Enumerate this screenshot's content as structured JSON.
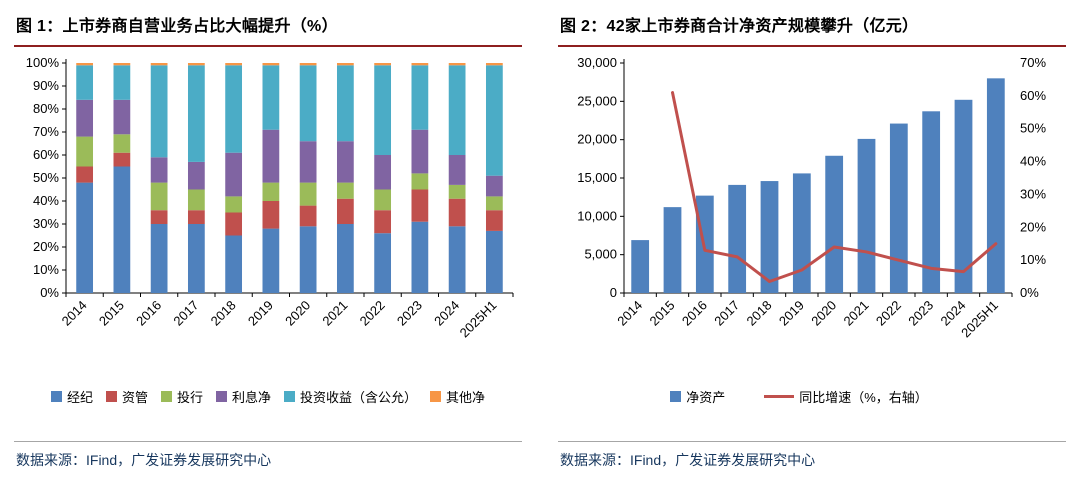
{
  "panels": [
    {
      "title": "图 1：上市券商自营业务占比大幅提升（%）",
      "source": "数据来源：IFind，广发证券发展研究中心"
    },
    {
      "title": "图 2：42家上市券商合计净资产规模攀升（亿元）",
      "source": "数据来源：IFind，广发证券发展研究中心"
    }
  ],
  "colors": {
    "title_rule": "#8E1F1F",
    "source_text": "#17375E",
    "divider": "#A6A6A6",
    "axis": "#000000"
  },
  "chart_data": [
    {
      "type": "bar",
      "stacked": true,
      "title": "上市券商自营业务占比大幅提升（%）",
      "categories": [
        "2014",
        "2015",
        "2016",
        "2017",
        "2018",
        "2019",
        "2020",
        "2021",
        "2022",
        "2023",
        "2024",
        "2025H1"
      ],
      "series": [
        {
          "name": "经纪",
          "color": "#4F81BD",
          "values": [
            48,
            55,
            30,
            30,
            25,
            28,
            29,
            30,
            26,
            31,
            29,
            27
          ]
        },
        {
          "name": "资管",
          "color": "#C0504D",
          "values": [
            7,
            6,
            6,
            6,
            10,
            12,
            9,
            11,
            10,
            14,
            12,
            9
          ]
        },
        {
          "name": "投行",
          "color": "#9BBB59",
          "values": [
            13,
            8,
            12,
            9,
            7,
            8,
            10,
            7,
            9,
            7,
            6,
            6
          ]
        },
        {
          "name": "利息净",
          "color": "#8064A2",
          "values": [
            16,
            15,
            11,
            12,
            19,
            23,
            18,
            18,
            15,
            19,
            13,
            9
          ]
        },
        {
          "name": "投资收益（含公允）",
          "color": "#4BACC6",
          "values": [
            15,
            15,
            40,
            42,
            38,
            28,
            33,
            33,
            39,
            28,
            39,
            48
          ]
        },
        {
          "name": "其他净",
          "color": "#F79646",
          "values": [
            1,
            1,
            1,
            1,
            1,
            1,
            1,
            1,
            1,
            1,
            1,
            1
          ]
        }
      ],
      "ylim": [
        0,
        100
      ],
      "ytick_step": 10,
      "ytick_format": "percent",
      "grid": false,
      "legend_position": "bottom"
    },
    {
      "type": "bar+line",
      "title": "42家上市券商合计净资产规模攀升（亿元）",
      "categories": [
        "2014",
        "2015",
        "2016",
        "2017",
        "2018",
        "2019",
        "2020",
        "2021",
        "2022",
        "2023",
        "2024",
        "2025H1"
      ],
      "bar_series": {
        "name": "净资产",
        "color": "#4F81BD",
        "values": [
          6900,
          11200,
          12700,
          14100,
          14600,
          15600,
          17900,
          20100,
          22100,
          23700,
          25200,
          28000
        ]
      },
      "line_series": {
        "name": "同比增速（%，右轴）",
        "color": "#C0504D",
        "axis": "right",
        "values": [
          null,
          61,
          13,
          11,
          3.5,
          7,
          14,
          12.5,
          10,
          7.5,
          6.5,
          15
        ]
      },
      "ylim_left": [
        0,
        30000
      ],
      "ytick_step_left": 5000,
      "ylim_right": [
        0,
        70
      ],
      "ytick_step_right": 10,
      "grid": false,
      "legend_position": "bottom"
    }
  ]
}
